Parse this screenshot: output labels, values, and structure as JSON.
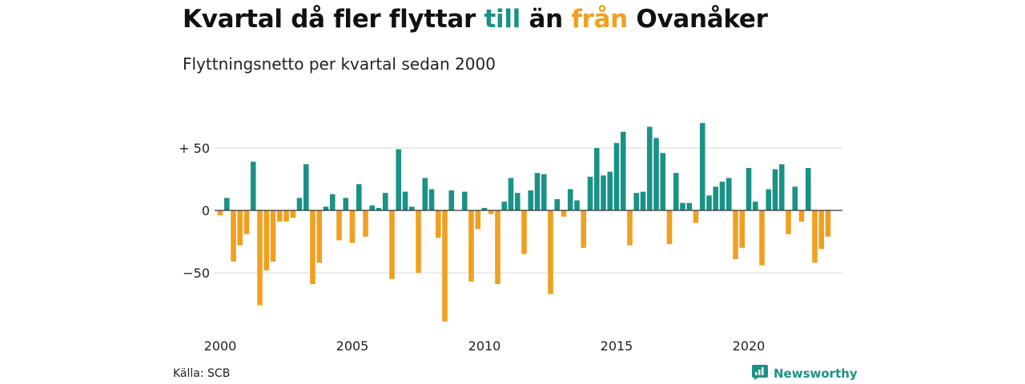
{
  "header": {
    "title_part1": "Kvartal då fler flyttar ",
    "title_till": "till",
    "title_part2": " än ",
    "title_fran": "från",
    "title_part3": " Ovanåker",
    "subtitle": "Flyttningsnetto per kvartal sedan 2000"
  },
  "footer": {
    "source": "Källa: SCB",
    "brand": "Newsworthy",
    "brand_icon": "newsworthy-logo-icon"
  },
  "colors": {
    "positive": "#1a9285",
    "negative": "#f0a020",
    "grid": "#d9d9d9",
    "zero_line": "#333333"
  },
  "chart_data": {
    "type": "bar",
    "title": "Kvartal då fler flyttar till än från Ovanåker",
    "subtitle": "Flyttningsnetto per kvartal sedan 2000",
    "xlabel": "",
    "ylabel": "",
    "x_start": "2000 Q1",
    "x_ticks": [
      "2000",
      "2005",
      "2010",
      "2015",
      "2020"
    ],
    "y_ticks": [
      50,
      0,
      -50
    ],
    "y_tick_labels": [
      "+ 50",
      "0",
      "−50"
    ],
    "ylim": [
      -90,
      75
    ],
    "grid": true,
    "series": [
      {
        "values": [
          -4,
          10,
          -41,
          -28,
          -19,
          39,
          -76,
          -48,
          -41,
          -9,
          -9,
          -6,
          10,
          37,
          -59,
          -42,
          3,
          13,
          -24,
          10,
          -26,
          21,
          -21,
          4,
          2,
          14,
          -55,
          49,
          15,
          3,
          -50,
          26,
          17,
          -22,
          -89,
          16,
          0,
          15,
          -57,
          -15,
          2,
          -3,
          -59,
          7,
          26,
          14,
          -35,
          16,
          30,
          29,
          -67,
          9,
          -5,
          17,
          8,
          -30,
          27,
          50,
          28,
          31,
          54,
          63,
          -28,
          14,
          15,
          67,
          58,
          46,
          -27,
          30,
          6,
          6,
          -10,
          70,
          12,
          19,
          23,
          26,
          -39,
          -30,
          34,
          7,
          -44,
          17,
          33,
          37,
          -19,
          19,
          -9,
          34,
          -42,
          -31,
          -21
        ]
      }
    ]
  }
}
